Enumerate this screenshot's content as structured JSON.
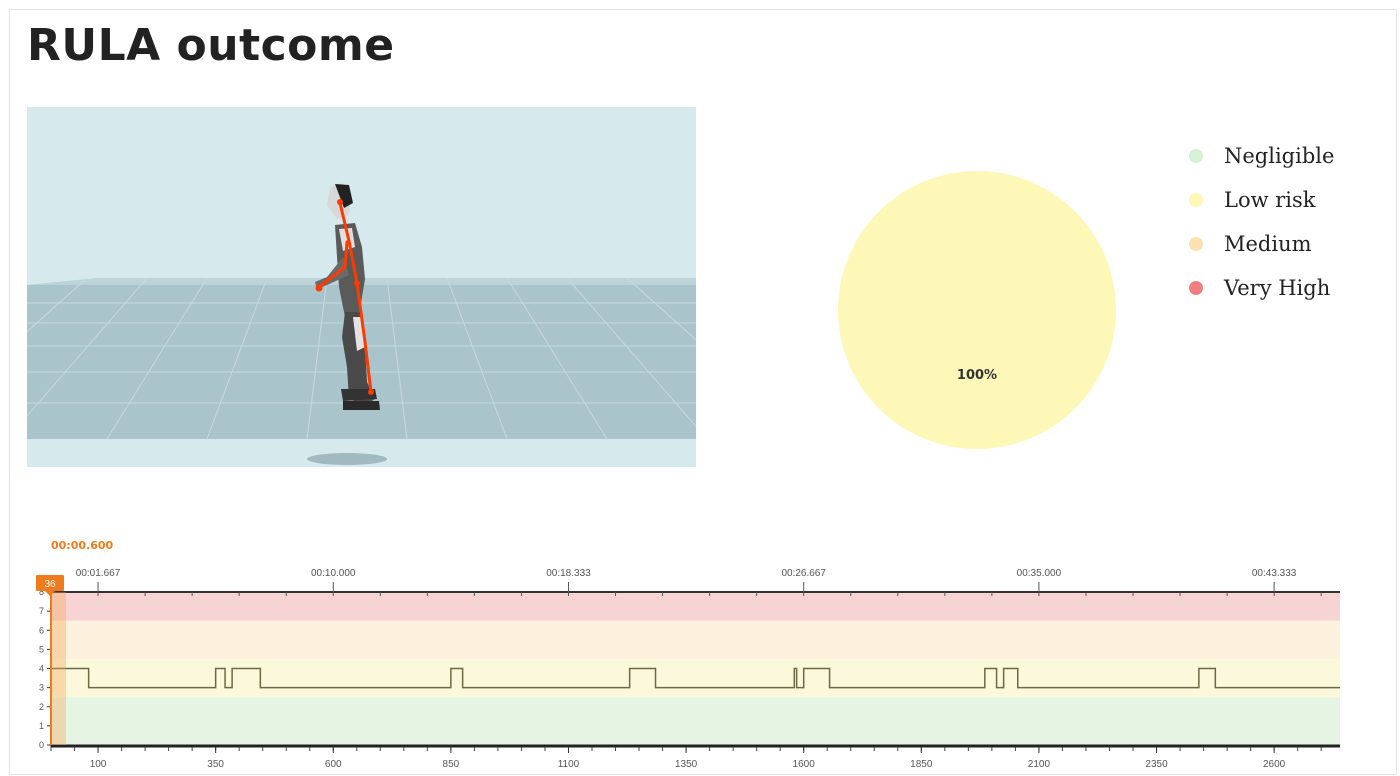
{
  "page": {
    "title": "RULA outcome"
  },
  "viewer": {
    "play_icon": "play-icon",
    "progress": 0.005
  },
  "pie": {
    "chart_data": {
      "type": "pie",
      "slices": [
        {
          "category": "Negligible",
          "value": 0
        },
        {
          "category": "Low risk",
          "value": 100
        },
        {
          "category": "Medium",
          "value": 0
        },
        {
          "category": "Very High",
          "value": 0
        }
      ],
      "labels": [
        "100%"
      ]
    },
    "label": "100%"
  },
  "legend": {
    "items": [
      {
        "label": "Negligible",
        "color": "#d4f2d4"
      },
      {
        "label": "Low risk",
        "color": "#fdf8b8"
      },
      {
        "label": "Medium",
        "color": "#fce1b0"
      },
      {
        "label": "Very High",
        "color": "#f08080"
      }
    ]
  },
  "timeline": {
    "current_time": "00:00.600",
    "marker_frame": "36",
    "chart_data": {
      "type": "line",
      "time_ticks": [
        "00:01.667",
        "00:10.000",
        "00:18.333",
        "00:26.667",
        "00:35.000",
        "00:43.333"
      ],
      "time_tick_frames": [
        100,
        600,
        1100,
        1600,
        2100,
        2600
      ],
      "x_tick_labels": [
        "100",
        "350",
        "600",
        "850",
        "1100",
        "1350",
        "1600",
        "1850",
        "2100",
        "2350",
        "2600"
      ],
      "y_tick_labels": [
        "0",
        "1",
        "2",
        "3",
        "4",
        "5",
        "6",
        "7",
        "8"
      ],
      "xlim": [
        0,
        2740
      ],
      "ylim": [
        0,
        8
      ],
      "bands": [
        {
          "from": 0,
          "to": 2.5,
          "color": "#e6f4e4"
        },
        {
          "from": 2.5,
          "to": 4.5,
          "color": "#fbf8dc"
        },
        {
          "from": 4.5,
          "to": 6.5,
          "color": "#fbf1dc"
        },
        {
          "from": 6.5,
          "to": 8,
          "color": "#f7d4d4"
        }
      ],
      "series": [
        {
          "x": [
            0,
            80,
            80,
            350,
            350,
            370,
            370,
            385,
            385,
            445,
            445,
            850,
            850,
            875,
            875,
            1230,
            1230,
            1285,
            1285,
            1580,
            1580,
            1585,
            1585,
            1600,
            1600,
            1655,
            1655,
            1985,
            1985,
            2010,
            2010,
            2025,
            2025,
            2055,
            2055,
            2440,
            2440,
            2475,
            2475,
            2740
          ],
          "y": [
            4,
            4,
            3,
            3,
            4,
            4,
            3,
            3,
            4,
            4,
            3,
            3,
            4,
            4,
            3,
            3,
            4,
            4,
            3,
            3,
            4,
            4,
            3,
            3,
            4,
            4,
            3,
            3,
            4,
            4,
            3,
            3,
            4,
            4,
            3,
            3,
            4,
            4,
            3,
            3
          ]
        }
      ]
    }
  }
}
